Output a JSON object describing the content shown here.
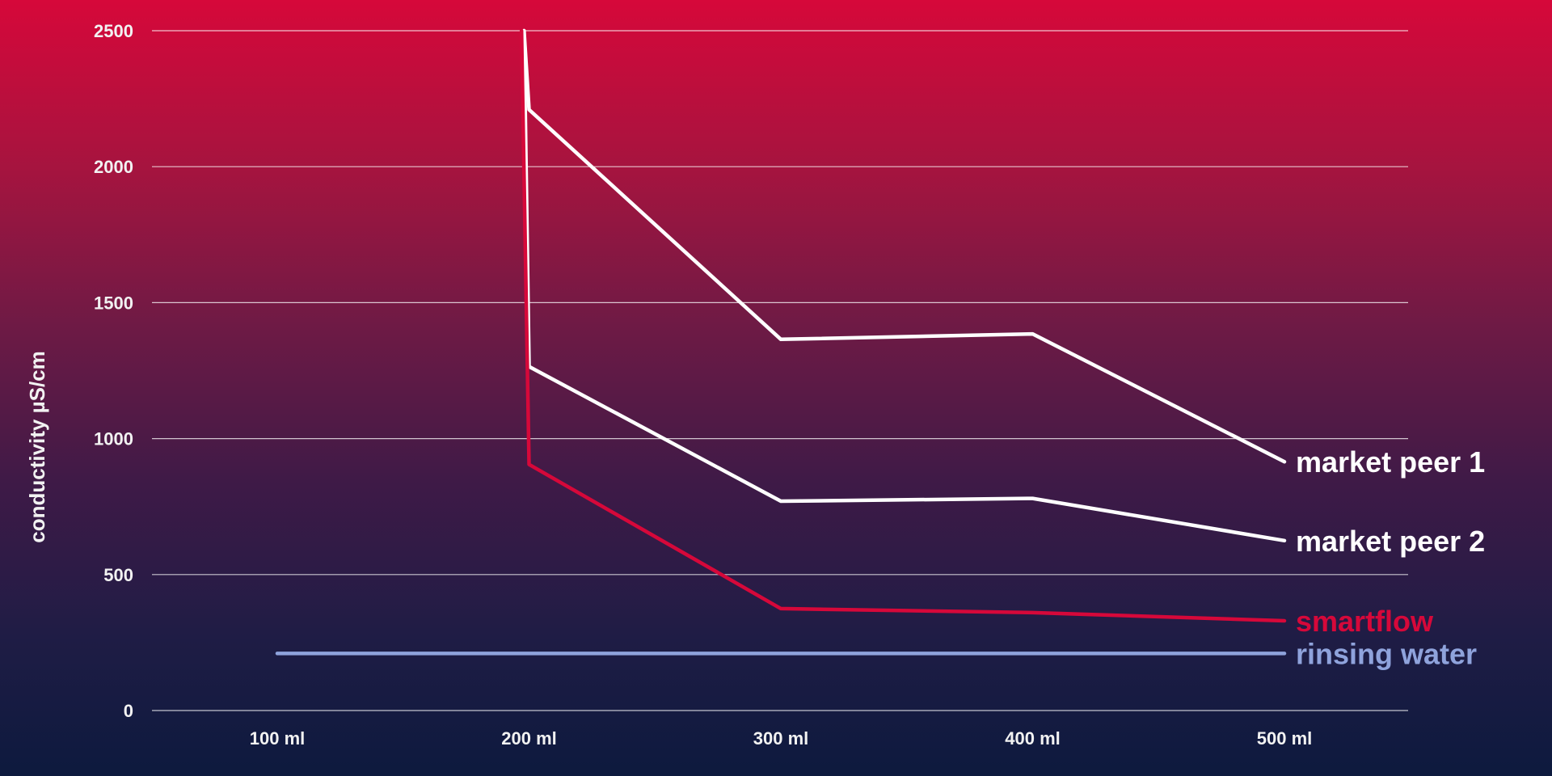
{
  "chart_data": {
    "type": "line",
    "ylabel": "conductivity µS/cm",
    "xlabel": "",
    "ylim": [
      0,
      2500
    ],
    "yticks": [
      "0",
      "500",
      "1000",
      "1500",
      "2000",
      "2500"
    ],
    "categories": [
      "100 ml",
      "200 ml",
      "300 ml",
      "400 ml",
      "500 ml"
    ],
    "grid": true,
    "legend": "right, inline at line ends",
    "series": [
      {
        "name": "market peer 1",
        "color": "#ffffff",
        "points": [
          [
            1.98,
            2500
          ],
          [
            2.0,
            2210
          ],
          [
            3.0,
            1365
          ],
          [
            4.0,
            1385
          ],
          [
            5.0,
            915
          ]
        ]
      },
      {
        "name": "market peer 2",
        "color": "#ffffff",
        "points": [
          [
            1.98,
            2500
          ],
          [
            2.0,
            1265
          ],
          [
            3.0,
            770
          ],
          [
            4.0,
            780
          ],
          [
            5.0,
            625
          ]
        ]
      },
      {
        "name": "smartflow",
        "color": "#d6083a",
        "points": [
          [
            1.97,
            2500
          ],
          [
            2.0,
            905
          ],
          [
            3.0,
            375
          ],
          [
            4.0,
            360
          ],
          [
            5.0,
            330
          ]
        ]
      },
      {
        "name": "rinsing water",
        "color": "#8fa3dc",
        "points": [
          [
            1.0,
            210
          ],
          [
            2.0,
            210
          ],
          [
            3.0,
            210
          ],
          [
            4.0,
            210
          ],
          [
            5.0,
            210
          ]
        ]
      }
    ]
  }
}
